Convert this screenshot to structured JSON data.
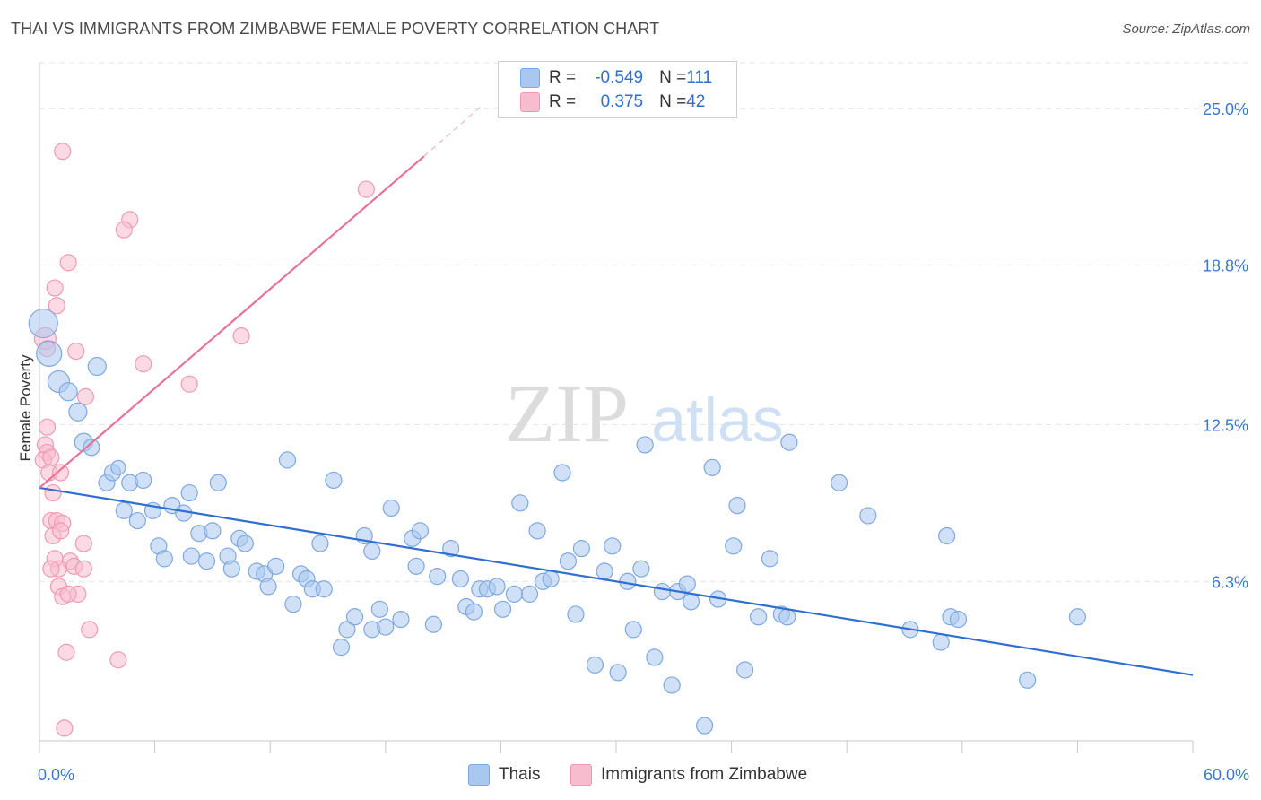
{
  "title": "THAI VS IMMIGRANTS FROM ZIMBABWE FEMALE POVERTY CORRELATION CHART",
  "source": "Source: ZipAtlas.com",
  "watermark": {
    "zip": "ZIP",
    "atlas": "atlas"
  },
  "legend": {
    "thai": {
      "r_label": "R = ",
      "r_value": "-0.549",
      "n_label": "N = ",
      "n_value": "111"
    },
    "zim": {
      "r_label": "R = ",
      "r_value": "0.375",
      "n_label": "N = ",
      "n_value": "42"
    }
  },
  "bottom_legend": {
    "thai": "Thais",
    "zim": "Immigrants from Zimbabwe"
  },
  "colors": {
    "thai_fill": "#a9c8f0",
    "thai_stroke": "#7ea8e0",
    "thai_line": "#2f6fd0",
    "zim_fill": "#f7bccd",
    "zim_stroke": "#ee9ab3",
    "zim_line": "#e8739a",
    "tick_text": "#3a78d4"
  },
  "chart_data": {
    "type": "scatter",
    "title": "THAI VS IMMIGRANTS FROM ZIMBABWE FEMALE POVERTY CORRELATION CHART",
    "xlabel": "",
    "ylabel": "Female Poverty",
    "xlim": [
      0,
      60
    ],
    "ylim": [
      0,
      26.8
    ],
    "x_tick_labels": [
      {
        "value": 0,
        "label": "0.0%"
      },
      {
        "value": 60,
        "label": "60.0%"
      }
    ],
    "y_ticks": [
      {
        "value": 6.3,
        "label": "6.3%"
      },
      {
        "value": 12.5,
        "label": "12.5%"
      },
      {
        "value": 18.8,
        "label": "18.8%"
      },
      {
        "value": 25.0,
        "label": "25.0%"
      }
    ],
    "series": [
      {
        "name": "Thais",
        "trend": {
          "x0": 0,
          "y0": 10.0,
          "x1": 60,
          "y1": 2.6
        },
        "points": [
          [
            0.2,
            16.5,
            16
          ],
          [
            0.5,
            15.3,
            14
          ],
          [
            1.0,
            14.2,
            12
          ],
          [
            1.5,
            13.8,
            10
          ],
          [
            3.0,
            14.8,
            10
          ],
          [
            2.0,
            13.0,
            10
          ],
          [
            2.3,
            11.8,
            10
          ],
          [
            2.7,
            11.6,
            9
          ],
          [
            3.5,
            10.2,
            9
          ],
          [
            3.8,
            10.6,
            9
          ],
          [
            4.1,
            10.8,
            8
          ],
          [
            4.7,
            10.2,
            9
          ],
          [
            5.4,
            10.3,
            9
          ],
          [
            4.4,
            9.1,
            9
          ],
          [
            5.1,
            8.7,
            9
          ],
          [
            5.9,
            9.1,
            9
          ],
          [
            6.9,
            9.3,
            9
          ],
          [
            7.5,
            9.0,
            9
          ],
          [
            7.8,
            9.8,
            9
          ],
          [
            9.3,
            10.2,
            9
          ],
          [
            12.9,
            11.1,
            9
          ],
          [
            15.3,
            10.3,
            9
          ],
          [
            6.2,
            7.7,
            9
          ],
          [
            6.5,
            7.2,
            9
          ],
          [
            7.9,
            7.3,
            9
          ],
          [
            8.3,
            8.2,
            9
          ],
          [
            8.7,
            7.1,
            9
          ],
          [
            9.0,
            8.3,
            9
          ],
          [
            9.8,
            7.3,
            9
          ],
          [
            10.0,
            6.8,
            9
          ],
          [
            10.4,
            8.0,
            9
          ],
          [
            10.7,
            7.8,
            9
          ],
          [
            11.3,
            6.7,
            9
          ],
          [
            11.7,
            6.6,
            9
          ],
          [
            11.9,
            6.1,
            9
          ],
          [
            12.3,
            6.9,
            9
          ],
          [
            13.2,
            5.4,
            9
          ],
          [
            13.6,
            6.6,
            9
          ],
          [
            13.9,
            6.4,
            9
          ],
          [
            14.2,
            6.0,
            9
          ],
          [
            14.8,
            6.0,
            9
          ],
          [
            14.6,
            7.8,
            9
          ],
          [
            16.0,
            4.4,
            9
          ],
          [
            16.4,
            4.9,
            9
          ],
          [
            15.7,
            3.7,
            9
          ],
          [
            17.3,
            4.4,
            9
          ],
          [
            16.9,
            8.1,
            9
          ],
          [
            17.7,
            5.2,
            9
          ],
          [
            18.0,
            4.5,
            9
          ],
          [
            17.3,
            7.5,
            9
          ],
          [
            18.3,
            9.2,
            9
          ],
          [
            18.8,
            4.8,
            9
          ],
          [
            19.4,
            8.0,
            9
          ],
          [
            19.6,
            6.9,
            9
          ],
          [
            19.8,
            8.3,
            9
          ],
          [
            20.5,
            4.6,
            9
          ],
          [
            20.7,
            6.5,
            9
          ],
          [
            21.4,
            7.6,
            9
          ],
          [
            21.9,
            6.4,
            9
          ],
          [
            22.2,
            5.3,
            9
          ],
          [
            22.6,
            5.1,
            9
          ],
          [
            22.9,
            6.0,
            9
          ],
          [
            23.3,
            6.0,
            9
          ],
          [
            24.1,
            5.2,
            9
          ],
          [
            23.8,
            6.1,
            9
          ],
          [
            25.0,
            9.4,
            9
          ],
          [
            25.5,
            5.8,
            9
          ],
          [
            25.9,
            8.3,
            9
          ],
          [
            26.2,
            6.3,
            9
          ],
          [
            26.6,
            6.4,
            9
          ],
          [
            27.2,
            10.6,
            9
          ],
          [
            27.5,
            7.1,
            9
          ],
          [
            27.9,
            5.0,
            9
          ],
          [
            28.2,
            7.6,
            9
          ],
          [
            28.9,
            3.0,
            9
          ],
          [
            29.4,
            6.7,
            9
          ],
          [
            29.8,
            7.7,
            9
          ],
          [
            30.1,
            2.7,
            9
          ],
          [
            30.6,
            6.3,
            9
          ],
          [
            30.9,
            4.4,
            9
          ],
          [
            31.5,
            11.7,
            9
          ],
          [
            31.3,
            6.8,
            9
          ],
          [
            32.0,
            3.3,
            9
          ],
          [
            32.4,
            5.9,
            9
          ],
          [
            32.9,
            2.2,
            9
          ],
          [
            33.2,
            5.9,
            9
          ],
          [
            33.9,
            5.5,
            9
          ],
          [
            33.7,
            6.2,
            9
          ],
          [
            34.6,
            0.6,
            9
          ],
          [
            35.0,
            10.8,
            9
          ],
          [
            35.3,
            5.6,
            9
          ],
          [
            36.1,
            7.7,
            9
          ],
          [
            36.3,
            9.3,
            9
          ],
          [
            36.7,
            2.8,
            9
          ],
          [
            37.4,
            4.9,
            9
          ],
          [
            38.0,
            7.2,
            9
          ],
          [
            38.6,
            5.0,
            9
          ],
          [
            39.0,
            11.8,
            9
          ],
          [
            38.9,
            4.9,
            9
          ],
          [
            41.6,
            10.2,
            9
          ],
          [
            43.1,
            8.9,
            9
          ],
          [
            45.3,
            4.4,
            9
          ],
          [
            46.9,
            3.9,
            9
          ],
          [
            47.2,
            8.1,
            9
          ],
          [
            47.4,
            4.9,
            9
          ],
          [
            47.8,
            4.8,
            9
          ],
          [
            51.4,
            2.4,
            9
          ],
          [
            54.0,
            4.9,
            9
          ],
          [
            24.7,
            5.8,
            9
          ]
        ]
      },
      {
        "name": "Immigrants from Zimbabwe",
        "trend": {
          "x0": 0,
          "y0": 10.0,
          "x1": 20.0,
          "y1": 23.1
        },
        "trend_dashed": {
          "x0": 20.0,
          "y0": 23.1,
          "x1": 23.0,
          "y1": 25.1
        },
        "points": [
          [
            1.2,
            23.3,
            9
          ],
          [
            4.7,
            20.6,
            9
          ],
          [
            4.4,
            20.2,
            9
          ],
          [
            1.5,
            18.9,
            9
          ],
          [
            0.8,
            17.9,
            9
          ],
          [
            0.9,
            17.2,
            9
          ],
          [
            0.3,
            15.9,
            12
          ],
          [
            0.4,
            15.5,
            9
          ],
          [
            1.9,
            15.4,
            9
          ],
          [
            5.4,
            14.9,
            9
          ],
          [
            10.5,
            16.0,
            9
          ],
          [
            17.0,
            21.8,
            9
          ],
          [
            7.8,
            14.1,
            9
          ],
          [
            2.4,
            13.6,
            9
          ],
          [
            0.4,
            12.4,
            9
          ],
          [
            0.3,
            11.7,
            9
          ],
          [
            0.4,
            11.4,
            9
          ],
          [
            0.2,
            11.1,
            9
          ],
          [
            0.6,
            11.2,
            9
          ],
          [
            0.5,
            10.6,
            9
          ],
          [
            1.1,
            10.6,
            9
          ],
          [
            0.7,
            9.8,
            9
          ],
          [
            0.6,
            8.7,
            9
          ],
          [
            0.9,
            8.7,
            9
          ],
          [
            1.2,
            8.6,
            9
          ],
          [
            0.7,
            8.1,
            9
          ],
          [
            1.1,
            8.3,
            9
          ],
          [
            2.3,
            7.8,
            9
          ],
          [
            0.8,
            7.2,
            9
          ],
          [
            1.6,
            7.1,
            9
          ],
          [
            1.8,
            6.9,
            9
          ],
          [
            1.0,
            6.8,
            9
          ],
          [
            0.6,
            6.8,
            9
          ],
          [
            2.3,
            6.8,
            9
          ],
          [
            1.0,
            6.1,
            9
          ],
          [
            2.0,
            5.8,
            9
          ],
          [
            1.2,
            5.7,
            9
          ],
          [
            1.5,
            5.8,
            9
          ],
          [
            2.6,
            4.4,
            9
          ],
          [
            1.4,
            3.5,
            9
          ],
          [
            4.1,
            3.2,
            9
          ],
          [
            1.3,
            0.5,
            9
          ]
        ]
      }
    ]
  }
}
